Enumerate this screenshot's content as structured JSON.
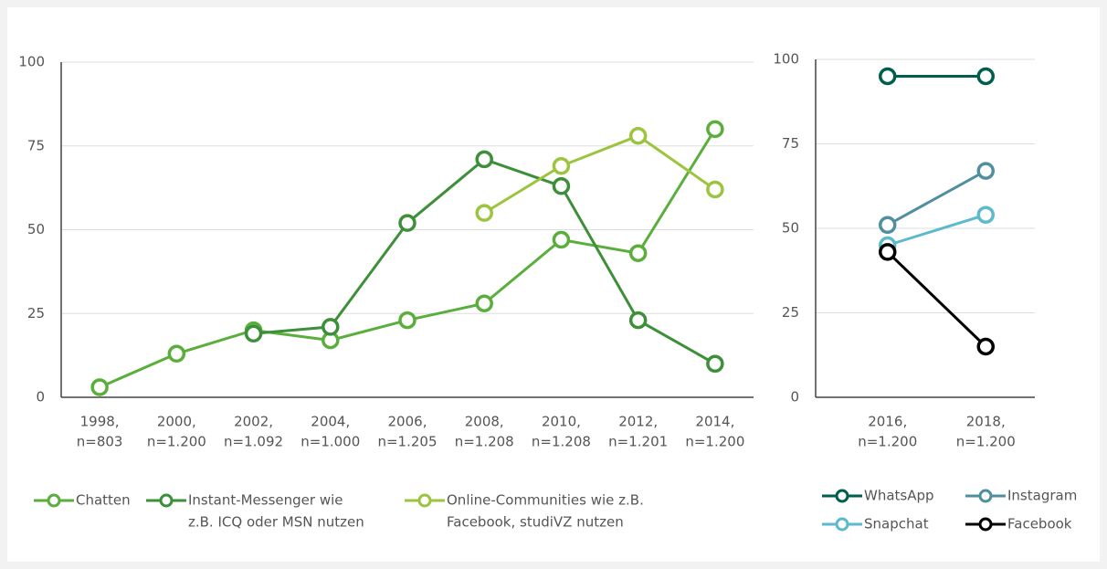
{
  "chart_data": [
    {
      "type": "line",
      "categories": [
        [
          "1998,",
          "n=803"
        ],
        [
          "2000,",
          "n=1.200"
        ],
        [
          "2002,",
          "n=1.092"
        ],
        [
          "2004,",
          "n=1.000"
        ],
        [
          "2006,",
          "n=1.205"
        ],
        [
          "2008,",
          "n=1.208"
        ],
        [
          "2010,",
          "n=1.208"
        ],
        [
          "2012,",
          "n=1.201"
        ],
        [
          "2014,",
          "n=1.200"
        ]
      ],
      "series": [
        {
          "name": [
            "Chatten"
          ],
          "color": "#5aae3c",
          "values": [
            3,
            13,
            20,
            17,
            23,
            28,
            47,
            43,
            80
          ]
        },
        {
          "name": [
            "Instant-Messenger wie",
            "z.B. ICQ oder MSN nutzen"
          ],
          "color": "#3d8f3a",
          "values": [
            null,
            null,
            19,
            21,
            52,
            71,
            63,
            23,
            10
          ]
        },
        {
          "name": [
            "Online-Communities wie z.B.",
            "Facebook, studiVZ nutzen"
          ],
          "color": "#9cc43e",
          "values": [
            null,
            null,
            null,
            null,
            null,
            55,
            69,
            78,
            62
          ]
        }
      ],
      "ylim": [
        0,
        100
      ],
      "yticks": [
        0,
        25,
        50,
        75,
        100
      ],
      "grid": true
    },
    {
      "type": "line",
      "categories": [
        [
          "2016,",
          "n=1.200"
        ],
        [
          "2018,",
          "n=1.200"
        ]
      ],
      "series": [
        {
          "name": [
            "WhatsApp"
          ],
          "color": "#005e4e",
          "values": [
            95,
            95
          ]
        },
        {
          "name": [
            "Instagram"
          ],
          "color": "#4f8f9f",
          "values": [
            51,
            67
          ]
        },
        {
          "name": [
            "Snapchat"
          ],
          "color": "#5db9cc",
          "values": [
            45,
            54
          ]
        },
        {
          "name": [
            "Facebook"
          ],
          "color": "#000000",
          "values": [
            43,
            15
          ]
        }
      ],
      "ylim": [
        0,
        100
      ],
      "yticks": [
        0,
        25,
        50,
        75,
        100
      ],
      "grid": true
    }
  ]
}
